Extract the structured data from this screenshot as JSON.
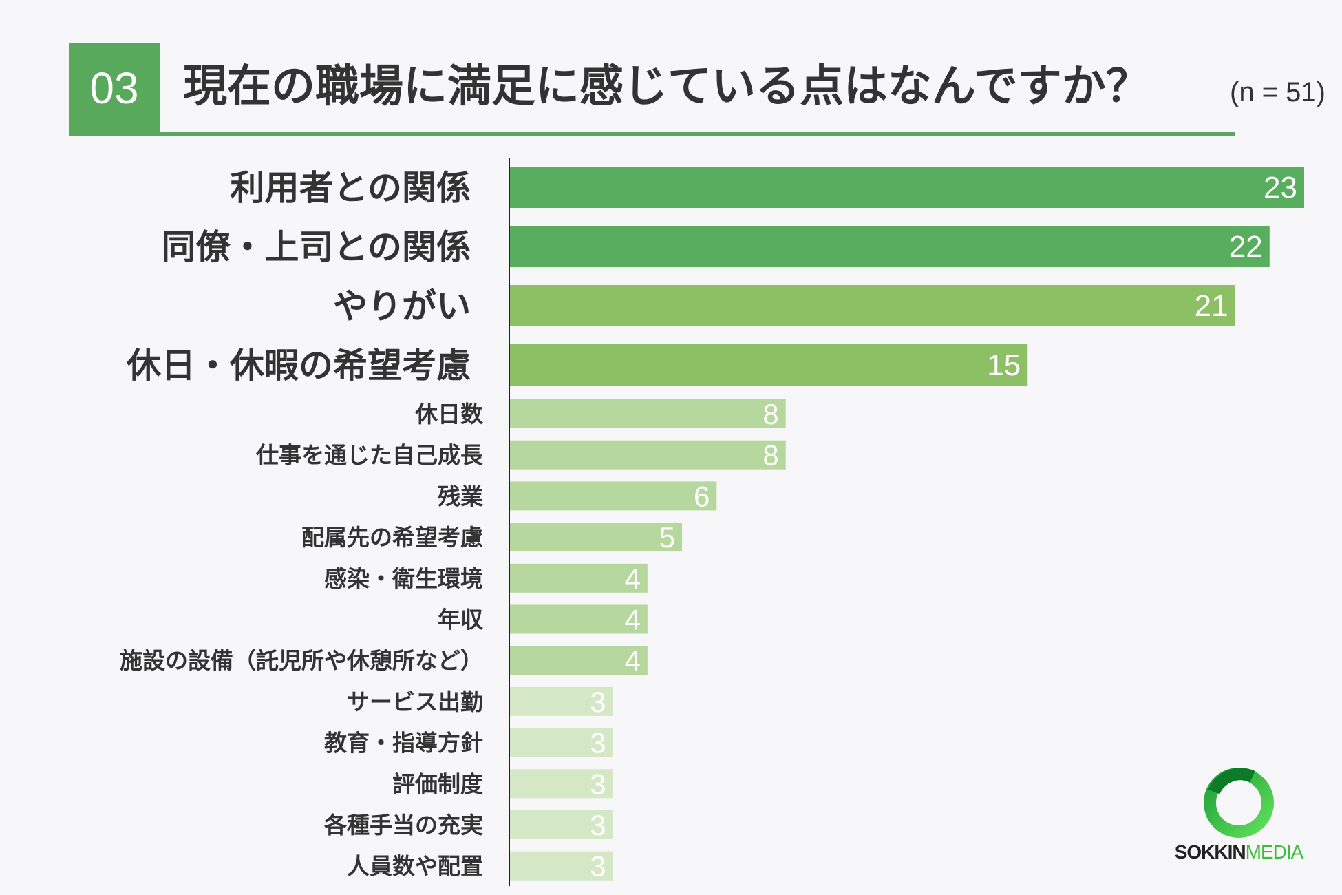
{
  "header": {
    "number": "03",
    "title": "現在の職場に満足に感じている点はなんですか？",
    "sample": "(n = 51)"
  },
  "chart_data": {
    "type": "bar",
    "orientation": "horizontal",
    "categories": [
      "利用者との関係",
      "同僚・上司との関係",
      "やりがい",
      "休日・休暇の希望考慮",
      "休日数",
      "仕事を通じた自己成長",
      "残業",
      "配属先の希望考慮",
      "感染・衛生環境",
      "年収",
      "施設の設備（託児所や休憩所など）",
      "サービス出勤",
      "教育・指導方針",
      "評価制度",
      "各種手当の充実",
      "人員数や配置"
    ],
    "values": [
      23,
      22,
      21,
      15,
      8,
      8,
      6,
      5,
      4,
      4,
      4,
      3,
      3,
      3,
      3,
      3
    ],
    "xlim": [
      0,
      23
    ],
    "grid": false,
    "colors": {
      "accent": "#58a95c",
      "tier1": "#58ae5e",
      "tier2": "#8dc065",
      "tier3": "#b6d89e",
      "tier4": "#d4e8c6"
    }
  },
  "logo": {
    "text_dark": "SOKKIN",
    "text_green": "MEDIA"
  }
}
